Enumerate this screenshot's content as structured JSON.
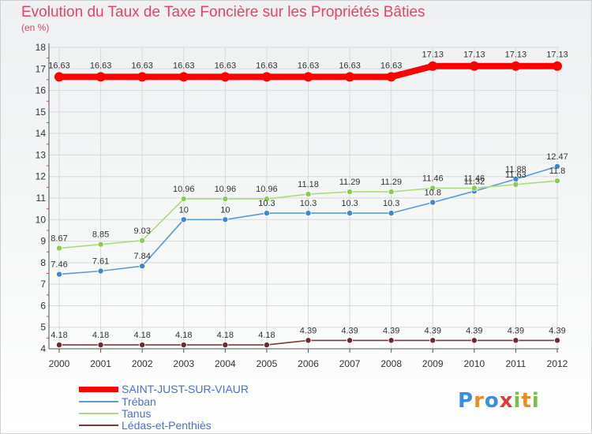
{
  "colors": {
    "title": "#e8416a",
    "legend_text": "#4b6dd6",
    "axis": "#555555",
    "grid": "#d9d9d9",
    "tick_red": "#e8416a"
  },
  "chart_data": {
    "type": "line",
    "title": "Evolution du Taux de Taxe Foncière sur les Propriétés Bâties",
    "ylabel": "(en %)",
    "xlabel": "",
    "x": [
      "2000",
      "2001",
      "2002",
      "2003",
      "2004",
      "2005",
      "2006",
      "2007",
      "2008",
      "2009",
      "2010",
      "2011",
      "2012"
    ],
    "ylim": [
      4,
      18
    ],
    "yticks": [
      4,
      5,
      6,
      7,
      8,
      9,
      10,
      11,
      12,
      13,
      14,
      15,
      16,
      17,
      18
    ],
    "grid": true,
    "legend_position": "bottom-left",
    "series": [
      {
        "name": "SAINT-JUST-SUR-VIAUR",
        "color": "#ff0000",
        "thick": true,
        "values": [
          16.63,
          16.63,
          16.63,
          16.63,
          16.63,
          16.63,
          16.63,
          16.63,
          16.63,
          17.13,
          17.13,
          17.13,
          17.13
        ],
        "labels": [
          "16.63",
          "16.63",
          "16.63",
          "16.63",
          "16.63",
          "16.63",
          "16.63",
          "16.63",
          "16.63",
          "17.13",
          "17.13",
          "17.13",
          "17.13"
        ]
      },
      {
        "name": "Tréban",
        "color": "#5a9bd5",
        "marker": "#3f86cc",
        "thick": false,
        "values": [
          7.46,
          7.61,
          7.84,
          10,
          10,
          10.3,
          10.3,
          10.3,
          10.3,
          10.8,
          11.32,
          11.88,
          12.47
        ],
        "labels": [
          "7.46",
          "7.61",
          "7.84",
          "10",
          "10",
          "10.3",
          "10.3",
          "10.3",
          "10.3",
          "10.8",
          "11.32",
          "11.88",
          "12.47"
        ]
      },
      {
        "name": "Tanus",
        "color": "#a8dc7c",
        "marker": "#8acc52",
        "thick": false,
        "values": [
          8.67,
          8.85,
          9.03,
          10.96,
          10.96,
          10.96,
          11.18,
          11.29,
          11.29,
          11.46,
          11.46,
          11.63,
          11.8
        ],
        "labels": [
          "8.67",
          "8.85",
          "9.03",
          "10.96",
          "10.96",
          "10.96",
          "11.18",
          "11.29",
          "11.29",
          "11.46",
          "11.46",
          "11.63",
          "11.8"
        ]
      },
      {
        "name": "Lédas-et-Penthiès",
        "color": "#7a3a3a",
        "marker": "#6b2b2b",
        "thick": false,
        "values": [
          4.18,
          4.18,
          4.18,
          4.18,
          4.18,
          4.18,
          4.39,
          4.39,
          4.39,
          4.39,
          4.39,
          4.39,
          4.39
        ],
        "labels": [
          "4.18",
          "4.18",
          "4.18",
          "4.18",
          "4.18",
          "4.18",
          "4.39",
          "4.39",
          "4.39",
          "4.39",
          "4.39",
          "4.39",
          "4.39"
        ]
      }
    ]
  },
  "logo": {
    "text": "Proxiti",
    "parts": [
      "P",
      "r",
      "o",
      "x",
      "i",
      "t",
      "i"
    ]
  }
}
